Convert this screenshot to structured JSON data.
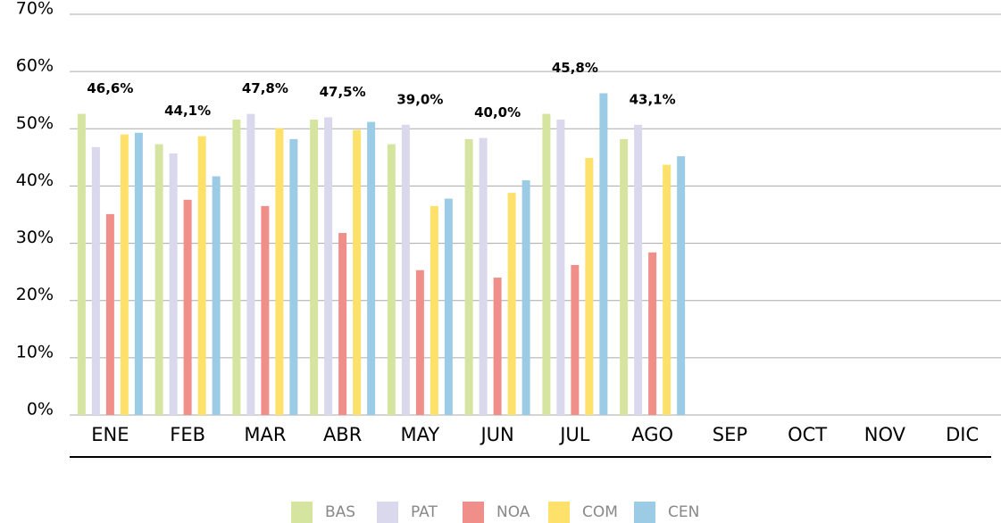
{
  "chart_data": {
    "type": "bar",
    "categories": [
      "ENE",
      "FEB",
      "MAR",
      "ABR",
      "MAY",
      "JUN",
      "JUL",
      "AGO",
      "SEP",
      "OCT",
      "NOV",
      "DIC"
    ],
    "series": [
      {
        "name": "BAS",
        "color": "#d5e59f",
        "values": [
          52.6,
          47.3,
          51.6,
          51.6,
          47.3,
          48.2,
          52.6,
          48.2,
          null,
          null,
          null,
          null
        ]
      },
      {
        "name": "PAT",
        "color": "#d9d8ec",
        "values": [
          46.8,
          45.7,
          52.6,
          52.0,
          50.7,
          48.4,
          51.6,
          50.7,
          null,
          null,
          null,
          null
        ]
      },
      {
        "name": "NOA",
        "color": "#f08f8a",
        "values": [
          35.1,
          37.6,
          36.5,
          31.8,
          25.3,
          24.0,
          26.2,
          28.4,
          null,
          null,
          null,
          null
        ]
      },
      {
        "name": "COM",
        "color": "#fde16a",
        "values": [
          49.0,
          48.7,
          50.1,
          49.8,
          36.5,
          38.8,
          44.9,
          43.7,
          null,
          null,
          null,
          null
        ]
      },
      {
        "name": "CEN",
        "color": "#9ccbe6",
        "values": [
          49.3,
          41.7,
          48.2,
          51.2,
          37.8,
          41.0,
          56.2,
          45.2,
          null,
          null,
          null,
          null
        ]
      }
    ],
    "annotations": [
      "46,6%",
      "44,1%",
      "47,8%",
      "47,5%",
      "39,0%",
      "40,0%",
      "45,8%",
      "43,1%"
    ],
    "ylim": [
      0,
      70
    ],
    "yticks": [
      {
        "value": 0,
        "label": "0%"
      },
      {
        "value": 10,
        "label": "10%"
      },
      {
        "value": 20,
        "label": "20%"
      },
      {
        "value": 30,
        "label": "30%"
      },
      {
        "value": 40,
        "label": "40%"
      },
      {
        "value": 50,
        "label": "50%"
      },
      {
        "value": 60,
        "label": "60%"
      },
      {
        "value": 70,
        "label": "70%"
      }
    ],
    "grid": true
  }
}
